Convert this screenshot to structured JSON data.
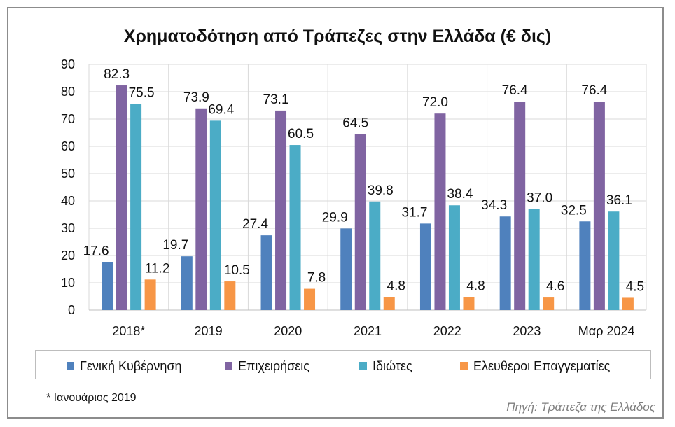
{
  "chart_data": {
    "type": "bar",
    "title": "Χρηματοδότηση από Τράπεζες στην Ελλάδα (€ δις)",
    "categories": [
      "2018*",
      "2019",
      "2020",
      "2021",
      "2022",
      "2023",
      "Μαρ 2024"
    ],
    "series": [
      {
        "name": "Γενική Κυβέρνηση",
        "values": [
          17.6,
          19.7,
          27.4,
          29.9,
          31.7,
          34.3,
          32.5
        ],
        "color": "#4f81bd"
      },
      {
        "name": "Επιχειρήσεις",
        "values": [
          82.3,
          73.9,
          73.1,
          64.5,
          72.0,
          76.4,
          76.4
        ],
        "color": "#8064a2"
      },
      {
        "name": "Ιδιώτες",
        "values": [
          75.5,
          69.4,
          60.5,
          39.8,
          38.4,
          37.0,
          36.1
        ],
        "color": "#4bacc6"
      },
      {
        "name": "Ελευθεροι Επαγγεματίες",
        "values": [
          11.2,
          10.5,
          7.8,
          4.8,
          4.8,
          4.6,
          4.5
        ],
        "color": "#f79646"
      }
    ],
    "ylim": [
      0,
      90
    ],
    "yticks": [
      0,
      10,
      20,
      30,
      40,
      50,
      60,
      70,
      80,
      90
    ],
    "xlabel": "",
    "ylabel": "",
    "grid": true,
    "legend_position": "bottom",
    "footnote": "* Ιανουάριος 2019",
    "source": "Πηγή: Τράπεζα της Ελλάδος"
  }
}
